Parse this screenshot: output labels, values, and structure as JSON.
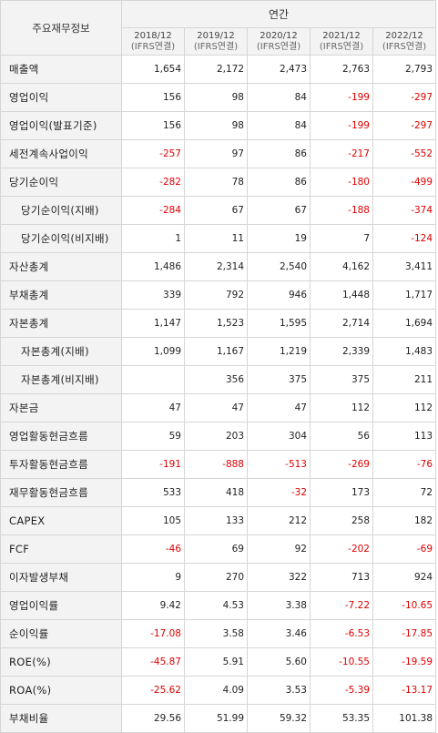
{
  "header": {
    "corner_label": "주요재무정보",
    "period_label": "연간",
    "columns": [
      {
        "year": "2018/12",
        "basis": "(IFRS연결)"
      },
      {
        "year": "2019/12",
        "basis": "(IFRS연결)"
      },
      {
        "year": "2020/12",
        "basis": "(IFRS연결)"
      },
      {
        "year": "2021/12",
        "basis": "(IFRS연결)"
      },
      {
        "year": "2022/12",
        "basis": "(IFRS연결)"
      }
    ]
  },
  "rows": [
    {
      "label": "매출액",
      "values": [
        "1,654",
        "2,172",
        "2,473",
        "2,763",
        "2,793"
      ]
    },
    {
      "label": "영업이익",
      "values": [
        "156",
        "98",
        "84",
        "-199",
        "-297"
      ]
    },
    {
      "label": "영업이익(발표기준)",
      "values": [
        "156",
        "98",
        "84",
        "-199",
        "-297"
      ]
    },
    {
      "label": "세전계속사업이익",
      "values": [
        "-257",
        "97",
        "86",
        "-217",
        "-552"
      ]
    },
    {
      "label": "당기순이익",
      "values": [
        "-282",
        "78",
        "86",
        "-180",
        "-499"
      ]
    },
    {
      "label": "당기순이익(지배)",
      "values": [
        "-284",
        "67",
        "67",
        "-188",
        "-374"
      ]
    },
    {
      "label": "당기순이익(비지배)",
      "values": [
        "1",
        "11",
        "19",
        "7",
        "-124"
      ]
    },
    {
      "label": "자산총계",
      "values": [
        "1,486",
        "2,314",
        "2,540",
        "4,162",
        "3,411"
      ]
    },
    {
      "label": "부채총계",
      "values": [
        "339",
        "792",
        "946",
        "1,448",
        "1,717"
      ]
    },
    {
      "label": "자본총계",
      "values": [
        "1,147",
        "1,523",
        "1,595",
        "2,714",
        "1,694"
      ]
    },
    {
      "label": "자본총계(지배)",
      "values": [
        "1,099",
        "1,167",
        "1,219",
        "2,339",
        "1,483"
      ]
    },
    {
      "label": "자본총계(비지배)",
      "values": [
        "",
        "356",
        "375",
        "375",
        "211"
      ]
    },
    {
      "label": "자본금",
      "values": [
        "47",
        "47",
        "47",
        "112",
        "112"
      ]
    },
    {
      "label": "영업활동현금흐름",
      "values": [
        "59",
        "203",
        "304",
        "56",
        "113"
      ]
    },
    {
      "label": "투자활동현금흐름",
      "values": [
        "-191",
        "-888",
        "-513",
        "-269",
        "-76"
      ]
    },
    {
      "label": "재무활동현금흐름",
      "values": [
        "533",
        "418",
        "-32",
        "173",
        "72"
      ]
    },
    {
      "label": "CAPEX",
      "values": [
        "105",
        "133",
        "212",
        "258",
        "182"
      ]
    },
    {
      "label": "FCF",
      "values": [
        "-46",
        "69",
        "92",
        "-202",
        "-69"
      ]
    },
    {
      "label": "이자발생부채",
      "values": [
        "9",
        "270",
        "322",
        "713",
        "924"
      ]
    },
    {
      "label": "영업이익률",
      "values": [
        "9.42",
        "4.53",
        "3.38",
        "-7.22",
        "-10.65"
      ]
    },
    {
      "label": "순이익률",
      "values": [
        "-17.08",
        "3.58",
        "3.46",
        "-6.53",
        "-17.85"
      ]
    },
    {
      "label": "ROE(%)",
      "values": [
        "-45.87",
        "5.91",
        "5.60",
        "-10.55",
        "-19.59"
      ]
    },
    {
      "label": "ROA(%)",
      "values": [
        "-25.62",
        "4.09",
        "3.53",
        "-5.39",
        "-13.17"
      ]
    },
    {
      "label": "부채비율",
      "values": [
        "29.56",
        "51.99",
        "59.32",
        "53.35",
        "101.38"
      ]
    }
  ],
  "colors": {
    "negative": "#e00000",
    "header_bg": "#f3f3f3",
    "border": "#d6d6d6"
  }
}
